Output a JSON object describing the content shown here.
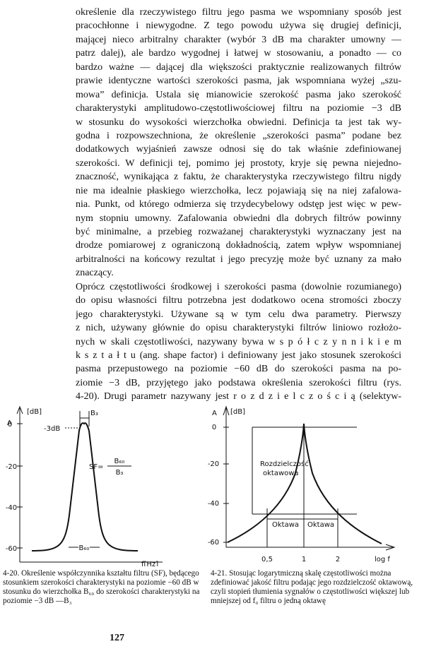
{
  "body": {
    "lines": [
      "określenie dla rzeczywistego filtru jego pasma we wspomniany sposób jest",
      "pracochłonne i niewygodne. Z tego powodu używa się drugiej definicji,",
      "mającej nieco arbitralny charakter (wybór 3 dB ma charakter umowny —",
      "patrz dalej), ale bardzo wygodnej i łatwej w stosowaniu, a ponadto — co",
      "bardzo ważne — dającej dla większości praktycznie realizowanych filtrów",
      "prawie identyczne wartości szerokości pasma, jak wspomniana wyżej „szu-",
      "mowa” definicja. Ustala się mianowicie szerokość pasma jako szerokość",
      "charakterystyki amplitudowo-częstotliwościowej filtru na poziomie −3 dB",
      "w stosunku do wysokości wierzchołka obwiedni. Definicja ta jest tak wy-",
      "godna i rozpowszechniona, że określenie „szerokości pasma” podane bez",
      "dodatkowych wyjaśnień zawsze odnosi się do tak właśnie zdefiniowanej",
      "szerokości. W definicji tej, pomimo jej prostoty, kryje się pewna niejedno-",
      "znaczność, wynikająca z faktu, że charakterystyka rzeczywistego filtru nigdy",
      "nie ma idealnie płaskiego wierzchołka, lecz pojawiają się na niej zafalowa-",
      "nia. Punkt, od którego odmierza się trzydecybelowy odstęp jest więc w pew-",
      "nym stopniu umowny. Zafalowania obwiedni dla dobrych filtrów powinny",
      "być minimalne, a przebieg rozważanej charakterystyki wyznaczany jest na",
      "drodze pomiarowej z ograniczoną dokładnością, zatem wpływ wspomnianej",
      "arbitralności na końcowy rezultat i jego precyzję może być uznany za mało",
      "znaczący.",
      "Oprócz częstotliwości środkowej i szerokości pasma (dowolnie rozumianego)",
      "do opisu własności filtru potrzebna jest dodatkowo ocena stromości zboczy",
      "jego charakterystyki. Używane są w tym celu dwa parametry. Pierwszy",
      "z nich, używany głównie do opisu charakterystyki filtrów liniowo rozłożo-",
      "nych w skali częstotliwości, nazywany bywa w s p ó ł c z y n n i k i e m",
      "k s z t a ł t u (ang. shape factor) i definiowany jest jako stosunek szerokości",
      "pasma przepustowego na poziomie −60 dB do szerokości pasma na po-",
      "ziomie −3 dB, przyjętego jako podstawa określenia szerokości filtru (rys.",
      "4-20). Drugi parametr nazywany jest r o z d z i e l c z o ś c i ą (selektyw-"
    ]
  },
  "figure_left": {
    "axis_label": "A",
    "axis_unit": "[dB]",
    "y_ticks": [
      "0",
      "-20",
      "-40",
      "-60"
    ],
    "b3": "B₃",
    "minus3db": "-3dB",
    "sf": "SF=",
    "sf_num": "B₆₀",
    "sf_den": "B₃",
    "b60": "B₆₀",
    "x_label": "f[Hz]",
    "caption": "4-20. Określenie współczynnika kształtu filtru (SF), będącego stosunkiem szerokości charakterystyki na poziomie −60 dB w stosunku do wierzchołka B₆₀ do szerokości charakterystyki na poziomie −3 dB —B₃"
  },
  "figure_right": {
    "axis_label": "A",
    "axis_unit": "[dB]",
    "y_ticks": [
      "0",
      "-20",
      "-40",
      "-60"
    ],
    "resolution_label": [
      "Rozdzielczość",
      "oktawowa"
    ],
    "octave_left": "Oktawa",
    "octave_right": "Oktawa",
    "x_ticks": [
      "0,5",
      "1",
      "2"
    ],
    "x_label": "log f",
    "caption": "4-21. Stosując logarytmiczną skalę częstotliwości można zdefiniować jakość filtru podając jego rozdzielczość oktawową, czyli stopień tłumienia sygnałów o częstotliwości większej lub mniejszej od f₀ filtru o jedną oktawę"
  },
  "page_number": "127"
}
